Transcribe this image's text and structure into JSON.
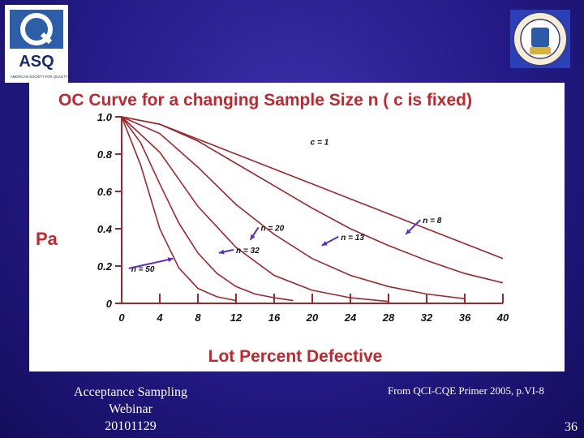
{
  "logos": {
    "left": {
      "text": "ASQ",
      "subtext": "AMERICAN SOCIETY FOR QUALITY"
    },
    "right": {
      "name": "circular society seal"
    }
  },
  "chart_data": {
    "type": "line",
    "title": "OC Curve for a changing Sample Size n ( c is fixed)",
    "xlabel": "Lot Percent Defective",
    "ylabel": "Pa",
    "xlim": [
      0,
      40
    ],
    "ylim": [
      0,
      1.0
    ],
    "x_ticks": [
      "0",
      "4",
      "8",
      "12",
      "16",
      "20",
      "24",
      "28",
      "32",
      "36",
      "40"
    ],
    "y_ticks": [
      "0",
      "0.2",
      "0.4",
      "0.6",
      "0.8",
      "1.0"
    ],
    "annotation": "c = 1",
    "series": [
      {
        "name": "n = 50",
        "x": [
          0,
          2,
          4,
          6,
          8,
          10,
          12
        ],
        "y": [
          1.0,
          0.74,
          0.4,
          0.19,
          0.08,
          0.035,
          0.015
        ]
      },
      {
        "name": "n = 32",
        "x": [
          0,
          2,
          4,
          6,
          8,
          10,
          12,
          14,
          16,
          18
        ],
        "y": [
          1.0,
          0.86,
          0.64,
          0.43,
          0.27,
          0.16,
          0.09,
          0.05,
          0.03,
          0.015
        ]
      },
      {
        "name": "n = 20",
        "x": [
          0,
          4,
          8,
          12,
          16,
          20,
          24,
          28
        ],
        "y": [
          1.0,
          0.81,
          0.52,
          0.3,
          0.15,
          0.07,
          0.03,
          0.01
        ]
      },
      {
        "name": "n = 13",
        "x": [
          0,
          4,
          8,
          12,
          16,
          20,
          24,
          28,
          32,
          36
        ],
        "y": [
          1.0,
          0.91,
          0.73,
          0.53,
          0.37,
          0.24,
          0.15,
          0.09,
          0.05,
          0.025
        ]
      },
      {
        "name": "n = 8",
        "x": [
          0,
          4,
          8,
          12,
          16,
          20,
          24,
          28,
          32,
          36,
          40
        ],
        "y": [
          1.0,
          0.96,
          0.87,
          0.75,
          0.63,
          0.51,
          0.4,
          0.31,
          0.23,
          0.16,
          0.11
        ]
      },
      {
        "name": "c = 1",
        "x": [
          0,
          4,
          8,
          12,
          16,
          20,
          24,
          28,
          32,
          36,
          40
        ],
        "y": [
          1.0,
          0.96,
          0.88,
          0.8,
          0.72,
          0.64,
          0.56,
          0.48,
          0.4,
          0.32,
          0.24
        ]
      }
    ]
  },
  "footer": {
    "left_lines": [
      "Acceptance Sampling",
      "Webinar",
      "20101129"
    ],
    "source": "From QCI-CQE Primer 2005, p.VI-8",
    "slide_number": "36"
  },
  "colors": {
    "background": "#241a86",
    "curve": "#a2262b",
    "panel": "#ffffff",
    "arrow": "#5a2bd0"
  }
}
